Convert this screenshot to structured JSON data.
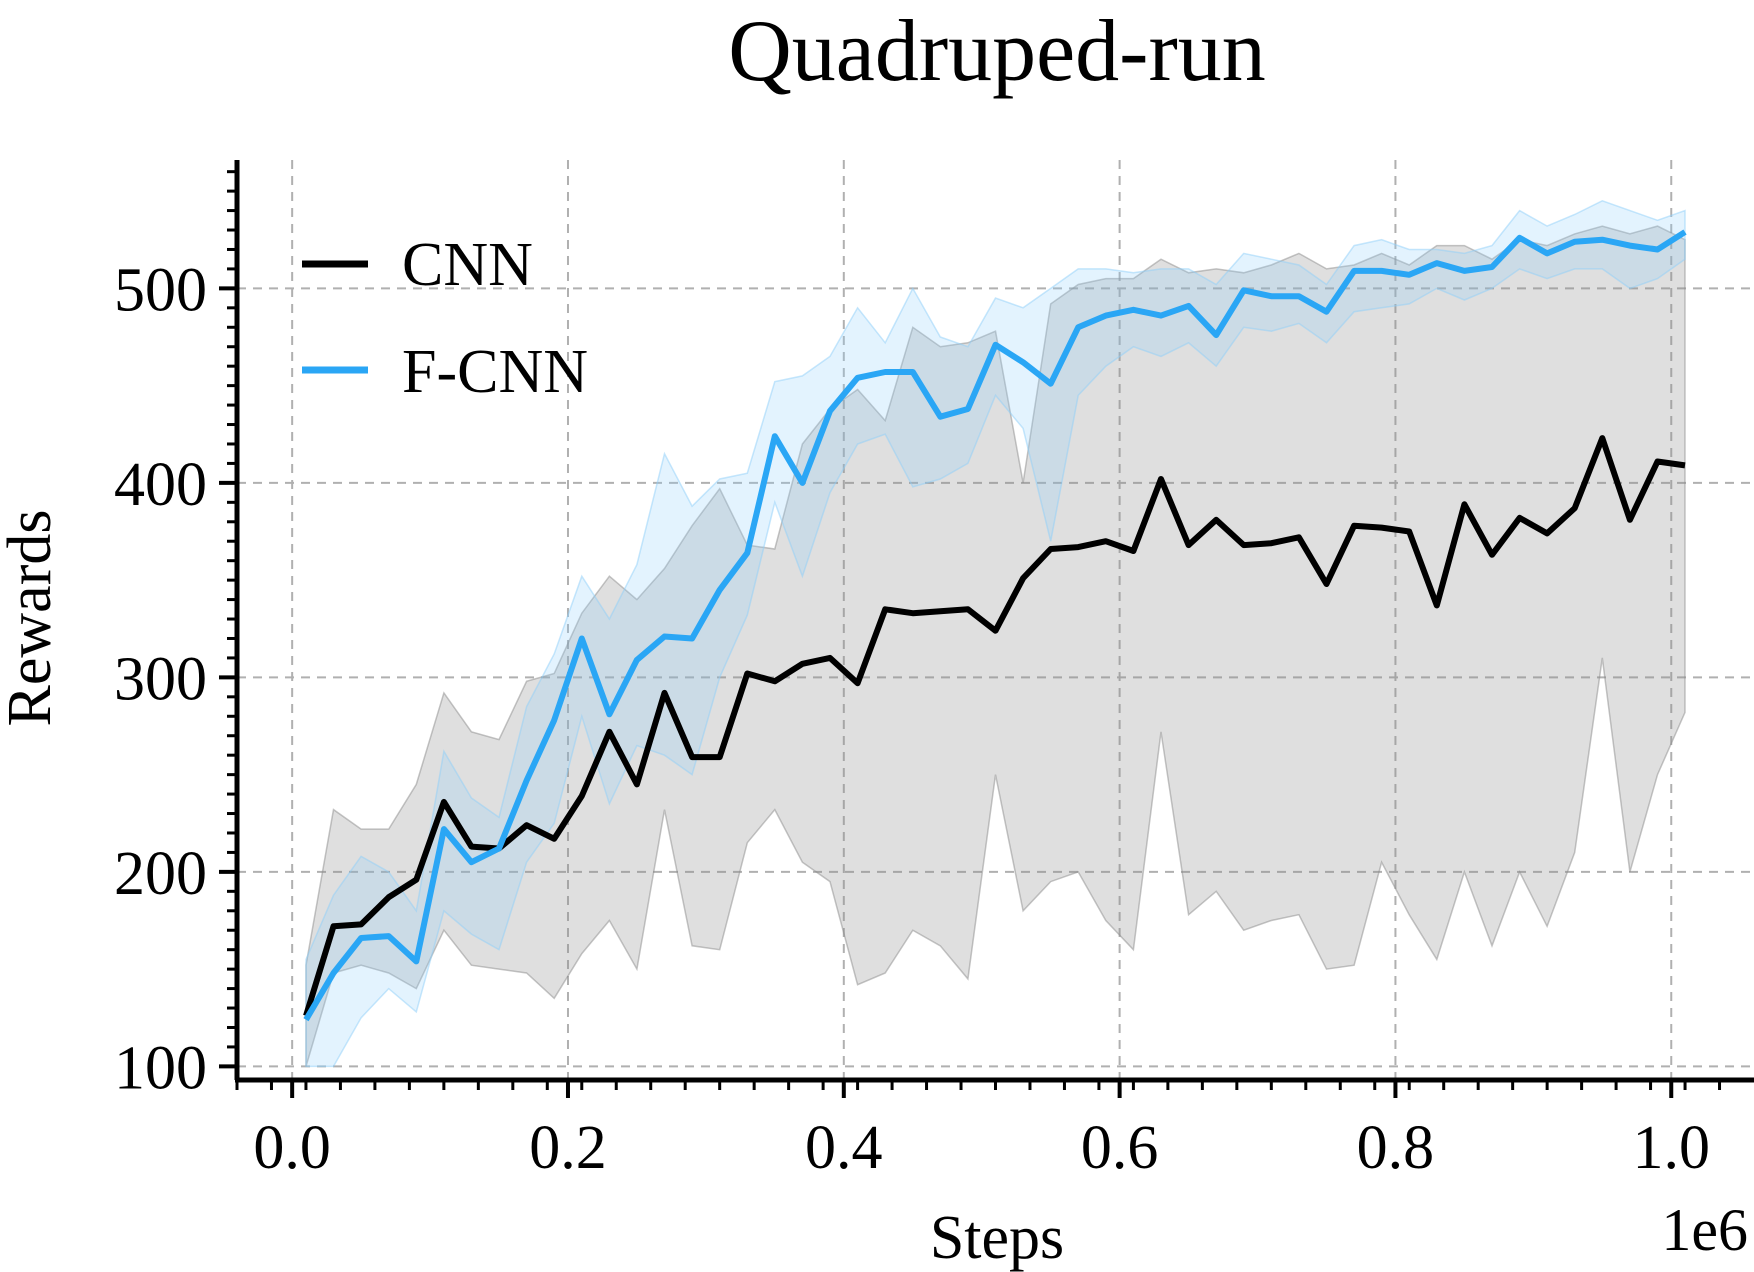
{
  "chart_data": {
    "type": "line",
    "title": "Quadruped-run",
    "xlabel": "Steps",
    "ylabel": "Rewards",
    "x_offset_label": "1e6",
    "xlim": [
      -0.04,
      1.06
    ],
    "ylim": [
      93,
      566
    ],
    "xticks": [
      0.0,
      0.2,
      0.4,
      0.6,
      0.8,
      1.0
    ],
    "xtick_labels": [
      "0.0",
      "0.2",
      "0.4",
      "0.6",
      "0.8",
      "1.0"
    ],
    "yticks": [
      100,
      200,
      300,
      400,
      500
    ],
    "ytick_labels": [
      "100",
      "200",
      "300",
      "400",
      "500"
    ],
    "grid": true,
    "legend_position": "top-left",
    "x": [
      0.01,
      0.03,
      0.05,
      0.07,
      0.09,
      0.11,
      0.13,
      0.15,
      0.17,
      0.19,
      0.21,
      0.23,
      0.25,
      0.27,
      0.29,
      0.31,
      0.33,
      0.35,
      0.37,
      0.39,
      0.41,
      0.43,
      0.45,
      0.47,
      0.49,
      0.51,
      0.53,
      0.55,
      0.57,
      0.59,
      0.61,
      0.63,
      0.65,
      0.67,
      0.69,
      0.71,
      0.73,
      0.75,
      0.77,
      0.79,
      0.81,
      0.83,
      0.85,
      0.87,
      0.89,
      0.91,
      0.93,
      0.95,
      0.97,
      0.99,
      1.01
    ],
    "series": [
      {
        "name": "CNN",
        "color": "#000000",
        "band_color": "#8c8c8c",
        "values": [
          126,
          172,
          173,
          187,
          196,
          236,
          213,
          212,
          224,
          217,
          239,
          272,
          245,
          292,
          259,
          259,
          302,
          298,
          307,
          310,
          297,
          335,
          333,
          334,
          335,
          324,
          351,
          366,
          367,
          370,
          365,
          402,
          368,
          381,
          368,
          369,
          372,
          348,
          378,
          377,
          375,
          337,
          389,
          363,
          382,
          374,
          387,
          423,
          381,
          411,
          409
        ],
        "lower": [
          100,
          148,
          152,
          148,
          140,
          170,
          152,
          150,
          148,
          135,
          158,
          175,
          150,
          232,
          162,
          160,
          215,
          232,
          205,
          195,
          142,
          148,
          170,
          162,
          145,
          250,
          180,
          195,
          200,
          175,
          160,
          272,
          178,
          190,
          170,
          175,
          178,
          150,
          152,
          205,
          178,
          155,
          200,
          162,
          200,
          172,
          210,
          310,
          200,
          250,
          282
        ],
        "upper": [
          152,
          232,
          222,
          222,
          245,
          292,
          272,
          268,
          298,
          302,
          333,
          352,
          340,
          356,
          378,
          397,
          368,
          366,
          420,
          438,
          448,
          432,
          480,
          470,
          472,
          478,
          400,
          492,
          502,
          505,
          505,
          515,
          508,
          510,
          508,
          512,
          518,
          510,
          512,
          518,
          512,
          522,
          522,
          515,
          525,
          522,
          528,
          532,
          528,
          532,
          525
        ]
      },
      {
        "name": "F-CNN",
        "color": "#2aa6f5",
        "band_color": "#8fd0fa",
        "values": [
          124,
          148,
          166,
          167,
          154,
          222,
          205,
          212,
          247,
          278,
          320,
          281,
          309,
          321,
          320,
          345,
          364,
          424,
          400,
          437,
          454,
          457,
          457,
          434,
          438,
          471,
          462,
          451,
          480,
          486,
          489,
          486,
          491,
          476,
          499,
          496,
          496,
          488,
          509,
          509,
          507,
          513,
          509,
          511,
          526,
          518,
          524,
          525,
          522,
          520,
          529
        ],
        "lower": [
          100,
          100,
          125,
          140,
          128,
          180,
          168,
          160,
          205,
          225,
          280,
          235,
          265,
          260,
          250,
          300,
          332,
          390,
          352,
          395,
          420,
          425,
          398,
          402,
          410,
          445,
          428,
          370,
          445,
          460,
          470,
          465,
          472,
          460,
          480,
          478,
          482,
          472,
          488,
          490,
          492,
          500,
          494,
          500,
          510,
          505,
          510,
          510,
          500,
          505,
          515
        ],
        "upper": [
          155,
          188,
          208,
          200,
          180,
          262,
          238,
          228,
          285,
          312,
          352,
          330,
          358,
          415,
          388,
          402,
          405,
          452,
          455,
          465,
          490,
          472,
          500,
          475,
          470,
          495,
          490,
          500,
          510,
          510,
          508,
          510,
          510,
          502,
          518,
          515,
          512,
          502,
          522,
          525,
          520,
          520,
          518,
          522,
          540,
          532,
          538,
          545,
          540,
          535,
          540
        ]
      }
    ]
  }
}
